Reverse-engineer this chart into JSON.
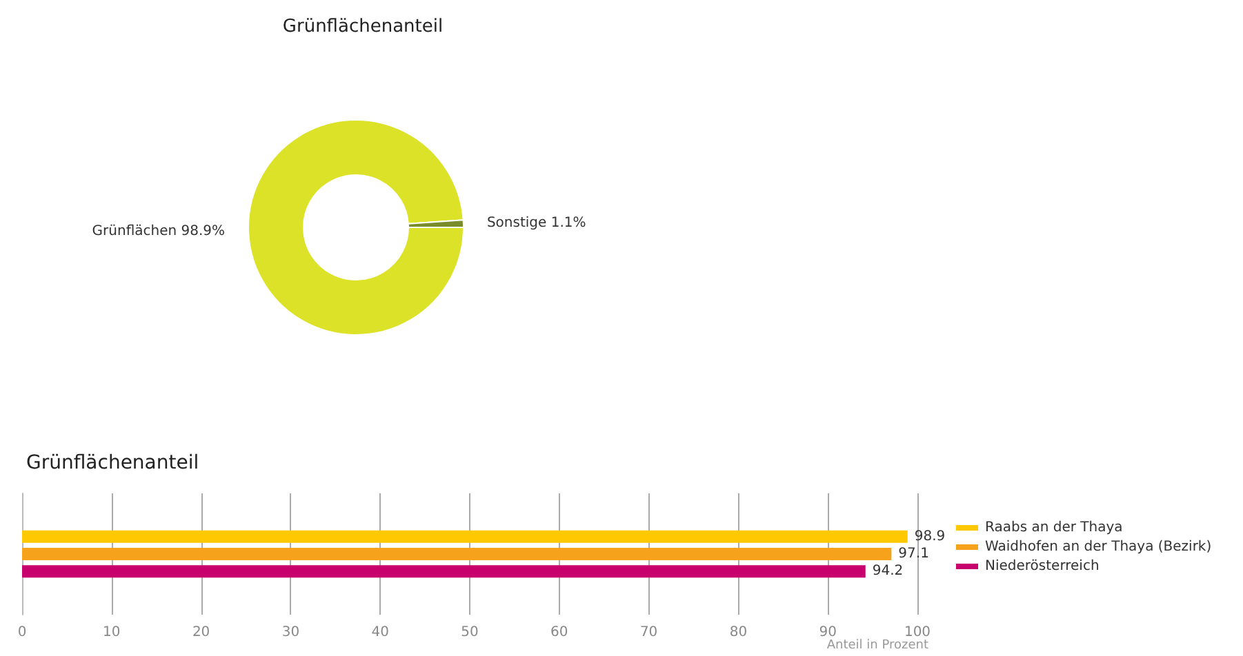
{
  "chart_data": [
    {
      "type": "donut",
      "title": "Grünflächenanteil",
      "categories": [
        "Grünflächen",
        "Sonstige"
      ],
      "values": [
        98.9,
        1.1
      ],
      "value_labels": [
        "98.9%",
        "1.1%"
      ],
      "colors": [
        "#dce228",
        "#7a8c2a"
      ],
      "legend": false
    },
    {
      "type": "bar",
      "orientation": "horizontal",
      "title": "Grünflächenanteil",
      "categories": [
        null
      ],
      "xlabel": "Anteil in Prozent",
      "series": [
        {
          "name": "Raabs an der Thaya",
          "color": "#ffc800",
          "values": [
            98.9
          ]
        },
        {
          "name": "Waidhofen an der Thaya (Bezirk)",
          "color": "#f7a21b",
          "values": [
            97.1
          ]
        },
        {
          "name": "Niederösterreich",
          "color": "#c8006e",
          "values": [
            94.2
          ]
        }
      ],
      "xlim": [
        0,
        100
      ],
      "xticks": [
        0,
        10,
        20,
        30,
        40,
        50,
        60,
        70,
        80,
        90,
        100
      ],
      "grid": "x",
      "legend": "right",
      "data_labels": true
    }
  ]
}
